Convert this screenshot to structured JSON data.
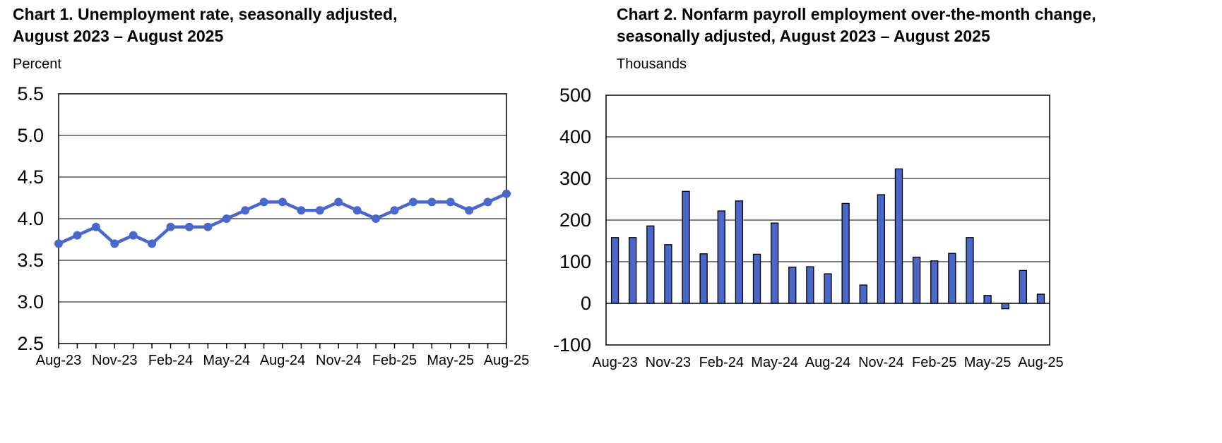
{
  "chart_data": [
    {
      "type": "line",
      "title": "Chart 1. Unemployment rate, seasonally adjusted,\nAugust 2023 – August 2025",
      "ylabel": "Percent",
      "ylim": [
        2.5,
        5.5
      ],
      "yticks": [
        "5.5",
        "5.0",
        "4.5",
        "4.0",
        "3.5",
        "3.0",
        "2.5"
      ],
      "ytick_values": [
        5.5,
        5.0,
        4.5,
        4.0,
        3.5,
        3.0,
        2.5
      ],
      "xtick_labels": [
        "Aug-23",
        "Nov-23",
        "Feb-24",
        "May-24",
        "Aug-24",
        "Nov-24",
        "Feb-25",
        "May-25",
        "Aug-25"
      ],
      "xtick_every": 3,
      "grid": true,
      "color": "#4a68c9",
      "values": [
        3.7,
        3.8,
        3.9,
        3.7,
        3.8,
        3.7,
        3.9,
        3.9,
        3.9,
        4.0,
        4.1,
        4.2,
        4.2,
        4.1,
        4.1,
        4.2,
        4.1,
        4.0,
        4.1,
        4.2,
        4.2,
        4.2,
        4.1,
        4.2,
        4.3
      ]
    },
    {
      "type": "bar",
      "title": "Chart 2. Nonfarm payroll employment over-the-month change,\nseasonally adjusted, August 2023 – August 2025",
      "ylabel": "Thousands",
      "ylim": [
        -100,
        500
      ],
      "yticks": [
        "500",
        "400",
        "300",
        "200",
        "100",
        "0",
        "-100"
      ],
      "ytick_values": [
        500,
        400,
        300,
        200,
        100,
        0,
        -100
      ],
      "xtick_labels": [
        "Aug-23",
        "Nov-23",
        "Feb-24",
        "May-24",
        "Aug-24",
        "Nov-24",
        "Feb-25",
        "May-25",
        "Aug-25"
      ],
      "xtick_every": 3,
      "grid": true,
      "color": "#4a68c9",
      "values": [
        158,
        158,
        186,
        141,
        269,
        119,
        222,
        246,
        118,
        193,
        87,
        88,
        71,
        240,
        44,
        261,
        323,
        111,
        102,
        120,
        158,
        19,
        -13,
        79,
        22
      ]
    }
  ]
}
